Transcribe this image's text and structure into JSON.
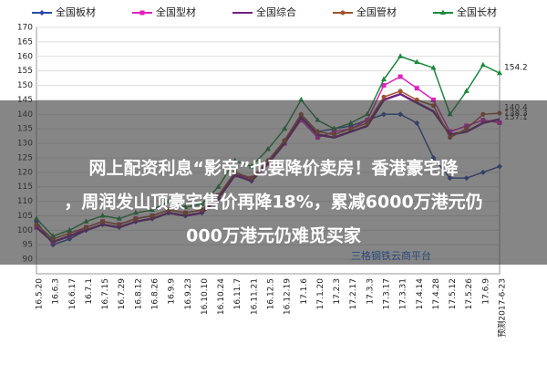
{
  "chart_data": {
    "type": "line",
    "categories": [
      "16.5.20",
      "16.6.3",
      "16.6.17",
      "16.7.1",
      "16.7.15",
      "16.7.29",
      "16.8.12",
      "16.8.26",
      "16.9.9",
      "16.9.23",
      "16.10.10",
      "16.10.24",
      "16.11.7",
      "16.11.21",
      "16.12.5",
      "16.12.19",
      "17.1.6",
      "17.1.20",
      "17.2.3",
      "17.2.17",
      "17.3.3",
      "17.3.17",
      "17.3.31",
      "17.4.14",
      "17.4.28",
      "17.5.12",
      "17.5.26",
      "17.6.9",
      "预测2017-6-23"
    ],
    "series": [
      {
        "name": "全国板材",
        "color": "#2a4aa8",
        "marker": "diamond",
        "show_last_label": false,
        "values": [
          103,
          95,
          97,
          100,
          102,
          101,
          103,
          104,
          106,
          105,
          106,
          111,
          120,
          117,
          124,
          131,
          140,
          134,
          135,
          136,
          138,
          140,
          140,
          137,
          125,
          118,
          118,
          120,
          122
        ]
      },
      {
        "name": "全国型材",
        "color": "#e020c0",
        "marker": "square",
        "show_last_label": true,
        "values": [
          101,
          96,
          98,
          101,
          103,
          102,
          104,
          105,
          107,
          106,
          107,
          112,
          119,
          118,
          123,
          130,
          138,
          132,
          134,
          135,
          138,
          150,
          153,
          149,
          145,
          134,
          136,
          138,
          137.1
        ]
      },
      {
        "name": "全国综合",
        "color": "#702080",
        "marker": "none",
        "show_last_label": true,
        "values": [
          101,
          96,
          98,
          100,
          102,
          101,
          103,
          104,
          106,
          105,
          106,
          111,
          119,
          117,
          123,
          130,
          139,
          133,
          132,
          134,
          136,
          145,
          147,
          144,
          141,
          133,
          134,
          137,
          138.3
        ]
      },
      {
        "name": "全国管材",
        "color": "#a0522d",
        "marker": "circle",
        "show_last_label": true,
        "values": [
          102,
          97,
          99,
          101,
          103,
          102,
          104,
          105,
          107,
          106,
          107,
          112,
          120,
          118,
          124,
          131,
          140,
          134,
          133,
          135,
          137,
          146,
          148,
          145,
          143,
          132,
          135,
          140,
          140.4
        ]
      },
      {
        "name": "全国长材",
        "color": "#1a8a3a",
        "marker": "triangle",
        "show_last_label": true,
        "values": [
          104,
          98,
          100,
          103,
          105,
          104,
          106,
          107,
          110,
          108,
          109,
          115,
          124,
          122,
          128,
          135,
          145,
          138,
          135,
          137,
          140,
          152,
          160,
          158,
          156,
          140,
          148,
          157,
          154.2
        ]
      }
    ],
    "ylim": [
      85,
      170
    ],
    "yticks": [
      90,
      95,
      100,
      105,
      110,
      115,
      120,
      125,
      130,
      135,
      140,
      145,
      150,
      155,
      160,
      165,
      170
    ],
    "grid": true,
    "watermark": "三格钢铁云商平台"
  },
  "banner": {
    "lines": [
      "网上配资利息“影帝”也要降价卖房！香港豪宅降",
      "，周润发山顶豪宅售价再降18%，累减6000万港元仍",
      "000万港元仍难觅买家"
    ]
  }
}
